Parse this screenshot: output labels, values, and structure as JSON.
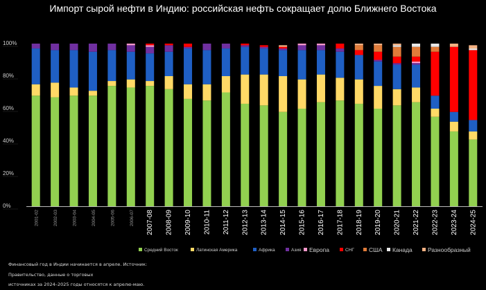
{
  "chart_data": {
    "type": "bar",
    "stacked": true,
    "title": "Импорт сырой нефти в Индию: российская нефть сокращает долю Ближнего Востока",
    "xlabel": "",
    "ylabel": "",
    "ylim": [
      0,
      100
    ],
    "y_ticks": [
      "0%",
      "20%",
      "40%",
      "60%",
      "80%",
      "100%"
    ],
    "categories": [
      "2001-02",
      "2002-03",
      "2003-04",
      "2004-05",
      "2005-06",
      "2006-07",
      "2007-08",
      "2008-09",
      "2009-10",
      "2010-11",
      "2011-12",
      "2012-13",
      "2013-14",
      "2014-15",
      "2015-16",
      "2016-17",
      "2017-18",
      "2018-19",
      "2019-20",
      "2020-21",
      "2021-22",
      "2022-23",
      "2023-24",
      "2024-25"
    ],
    "category_labels": [
      "2001-02",
      "2002-03",
      "2003-04",
      "2004-05",
      "2005-06",
      "2006-07",
      "2007-08",
      "2008-09",
      "2009-10",
      "2010-11",
      "2011-12",
      "2012-13",
      "2013-14",
      "2014-15",
      "2015-16",
      "2016-17",
      "2017-18",
      "2018-19",
      "2019-20",
      "2020-21",
      "2021-22",
      "2022-23",
      "2023-24",
      "2024-25"
    ],
    "series": [
      {
        "name": "Средний Восток",
        "color": "#92d050",
        "values": [
          68,
          67,
          68,
          68,
          74,
          73,
          74,
          72,
          66,
          65,
          70,
          63,
          62,
          58,
          60,
          64,
          65,
          63,
          60,
          62,
          64,
          55,
          46,
          41
        ]
      },
      {
        "name": "Латинская Америка",
        "color": "#ffd966",
        "values": [
          7,
          9,
          5,
          3,
          3,
          5,
          3,
          8,
          9,
          10,
          10,
          18,
          19,
          22,
          18,
          17,
          14,
          15,
          14,
          10,
          9,
          5,
          6,
          5
        ]
      },
      {
        "name": "Африка",
        "color": "#1f5fc4",
        "values": [
          22,
          20,
          23,
          24,
          19,
          17,
          17,
          15,
          22,
          21,
          17,
          17,
          16,
          16,
          18,
          15,
          16,
          15,
          15,
          15,
          14,
          8,
          6,
          7
        ]
      },
      {
        "name": "Азия",
        "color": "#7030a0",
        "values": [
          3,
          4,
          4,
          5,
          4,
          4,
          4,
          4,
          1,
          4,
          3,
          1,
          1,
          1,
          3,
          3,
          2,
          0,
          1,
          1,
          1,
          0,
          0,
          0
        ]
      },
      {
        "name": "Европа",
        "color": "#ff99cc",
        "values": [
          0,
          0,
          0,
          0,
          0,
          1,
          1,
          0,
          0,
          0,
          0,
          0,
          0,
          0,
          1,
          1,
          0,
          0,
          0,
          0,
          1,
          0,
          0,
          0
        ]
      },
      {
        "name": "СНГ",
        "color": "#ff0000",
        "values": [
          0,
          0,
          0,
          0,
          0,
          0,
          1,
          1,
          2,
          0,
          0,
          1,
          1,
          1,
          0,
          0,
          3,
          3,
          5,
          4,
          3,
          27,
          40,
          43
        ]
      },
      {
        "name": "США",
        "color": "#e07b39",
        "values": [
          0,
          0,
          0,
          0,
          0,
          0,
          0,
          0,
          0,
          0,
          0,
          0,
          0,
          0,
          0,
          0,
          0,
          3,
          4,
          6,
          6,
          3,
          0,
          0
        ]
      },
      {
        "name": "Канада",
        "color": "#e8e8e8",
        "values": [
          0,
          0,
          0,
          0,
          0,
          0,
          0,
          0,
          0,
          0,
          0,
          0,
          0,
          0,
          0,
          0,
          0,
          0,
          0,
          1,
          2,
          2,
          0,
          1
        ]
      },
      {
        "name": "Разнообразный",
        "color": "#f4b183",
        "values": [
          0,
          0,
          0,
          0,
          0,
          0,
          0,
          0,
          0,
          0,
          0,
          0,
          0,
          1,
          0,
          0,
          0,
          1,
          1,
          1,
          0,
          0,
          2,
          2
        ]
      }
    ],
    "legend_position": "bottom"
  },
  "notes": [
    "Финансовый год в Индии начинается в апреле. Источник:",
    "Правительство, данные о торговых",
    "источниках за 2024–2025 годы относятся к апрелю-маю."
  ]
}
